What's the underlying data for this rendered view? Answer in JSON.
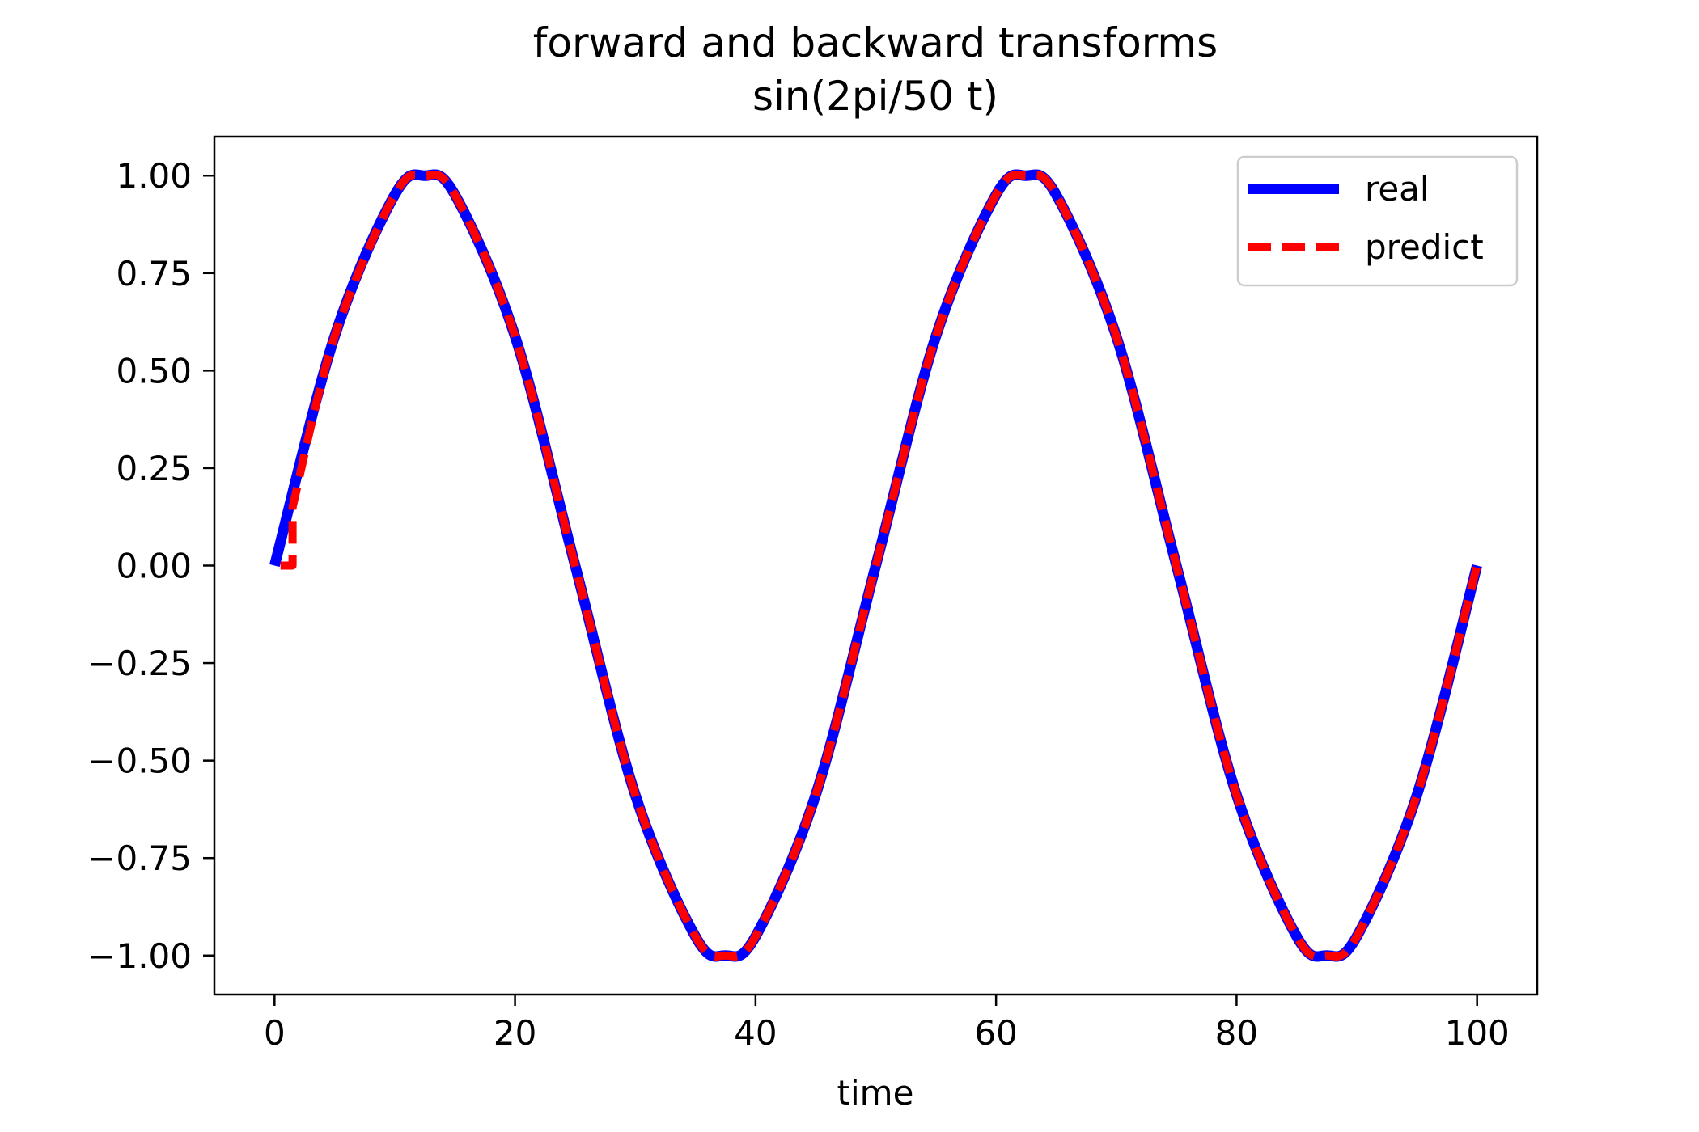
{
  "chart_data": {
    "type": "line",
    "title": "forward and backward transforms",
    "subtitle": "sin(2pi/50 t)",
    "xlabel": "time",
    "ylabel": "",
    "xlim": [
      -5,
      105
    ],
    "ylim": [
      -1.1,
      1.1
    ],
    "xticks": [
      0,
      20,
      40,
      60,
      80,
      100
    ],
    "xtick_labels": [
      "0",
      "20",
      "40",
      "60",
      "80",
      "100"
    ],
    "yticks": [
      1.0,
      0.75,
      0.5,
      0.25,
      0.0,
      -0.25,
      -0.5,
      -0.75,
      -1.0
    ],
    "ytick_labels": [
      "1.00",
      "0.75",
      "0.50",
      "0.25",
      "0.00",
      "−0.25",
      "−0.50",
      "−0.75",
      "−1.00"
    ],
    "grid": false,
    "legend_position": "upper right",
    "series": [
      {
        "name": "real",
        "color": "#0000ff",
        "style": "solid",
        "x": [
          0,
          5,
          10,
          12.5,
          15,
          20,
          25,
          30,
          35,
          37.5,
          40,
          45,
          50,
          55,
          60,
          62.5,
          65,
          70,
          75,
          80,
          85,
          87.5,
          90,
          95,
          100
        ],
        "y": [
          0.0,
          0.588,
          0.951,
          1.0,
          0.951,
          0.588,
          0.0,
          -0.588,
          -0.951,
          -1.0,
          -0.951,
          -0.588,
          0.0,
          0.588,
          0.951,
          1.0,
          0.951,
          0.588,
          0.0,
          -0.588,
          -0.951,
          -1.0,
          -0.951,
          -0.588,
          0.0
        ]
      },
      {
        "name": "predict",
        "color": "#ff0000",
        "style": "dashed",
        "x": [
          0.5,
          1.5,
          1.5,
          5,
          10,
          12.5,
          15,
          20,
          25,
          30,
          35,
          37.5,
          40,
          45,
          50,
          55,
          60,
          62.5,
          65,
          70,
          75,
          80,
          85,
          87.5,
          90,
          95,
          100
        ],
        "y": [
          0.0,
          0.0,
          0.15,
          0.588,
          0.951,
          1.0,
          0.951,
          0.588,
          0.0,
          -0.588,
          -0.951,
          -1.0,
          -0.951,
          -0.588,
          0.0,
          0.588,
          0.951,
          1.0,
          0.951,
          0.588,
          0.0,
          -0.588,
          -0.951,
          -1.0,
          -0.951,
          -0.588,
          0.0
        ]
      }
    ]
  }
}
